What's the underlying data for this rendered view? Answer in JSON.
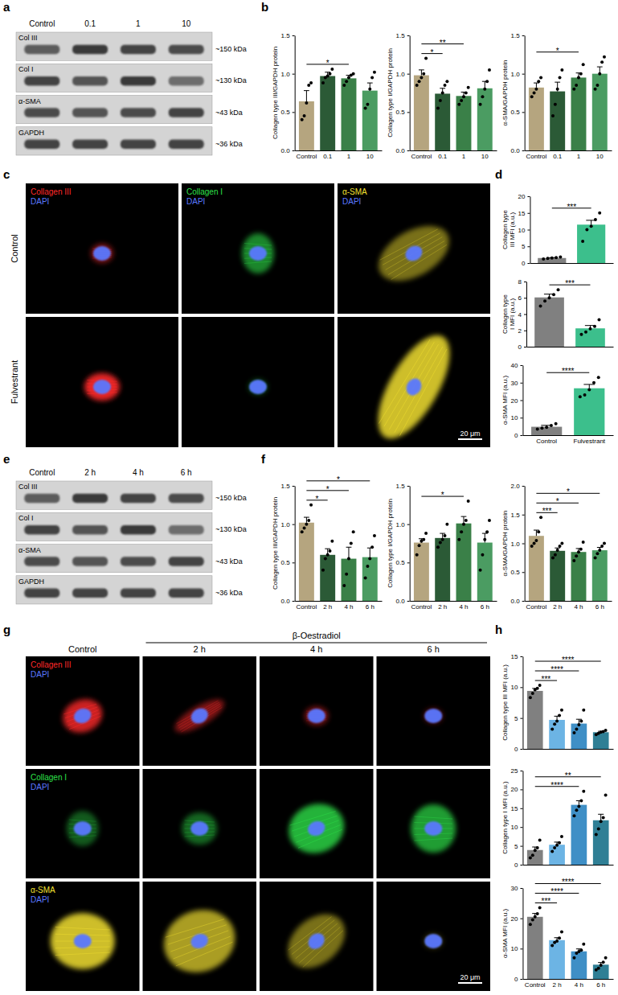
{
  "panel_letters": [
    "a",
    "b",
    "c",
    "d",
    "e",
    "f",
    "g",
    "h"
  ],
  "blots": [
    {
      "lanes": [
        "Control",
        "0.1",
        "1",
        "10"
      ],
      "rows": [
        {
          "name": "Col III",
          "size": "~150 kDa"
        },
        {
          "name": "Col I",
          "size": "~130 kDa"
        },
        {
          "name": "α-SMA",
          "size": "~43 kDa"
        },
        {
          "name": "GAPDH",
          "size": "~36 kDa"
        }
      ]
    },
    {
      "lanes": [
        "Control",
        "2 h",
        "4 h",
        "6 h"
      ],
      "rows": [
        {
          "name": "Col III",
          "size": "~150 kDa"
        },
        {
          "name": "Col I",
          "size": "~130 kDa"
        },
        {
          "name": "α-SMA",
          "size": "~43 kDa"
        },
        {
          "name": "GAPDH",
          "size": "~36 kDa"
        }
      ]
    }
  ],
  "micrographs": [
    {
      "rows": [
        "Control",
        "Fulvestrant"
      ],
      "channels": [
        {
          "name": "Collagen III",
          "color": "#ff2a2a"
        },
        {
          "name": "Collagen I",
          "color": "#2ee04a"
        },
        {
          "name": "α-SMA",
          "color": "#f2e030"
        }
      ],
      "counterstain": {
        "name": "DAPI",
        "color": "#5a78ff"
      },
      "scale_bar": "20 μm"
    },
    {
      "columns": [
        "Control",
        "2 h",
        "4 h",
        "6 h"
      ],
      "group": "β-Oestradiol",
      "channels": [
        {
          "name": "Collagen III",
          "color": "#ff2a2a"
        },
        {
          "name": "Collagen I",
          "color": "#2ee04a"
        },
        {
          "name": "α-SMA",
          "color": "#f2e030"
        }
      ],
      "counterstain": {
        "name": "DAPI",
        "color": "#5a78ff"
      },
      "scale_bar": "20 μm"
    }
  ],
  "chart_data": [
    {
      "type": "bar",
      "y_label": "Collagen type III/GAPDH protein",
      "categories": [
        "Control",
        "0.1",
        "1",
        "10"
      ],
      "values": [
        0.64,
        0.97,
        0.94,
        0.78
      ],
      "errors": [
        0.14,
        0.05,
        0.04,
        0.1
      ],
      "points": [
        [
          0.4,
          0.45,
          0.62,
          0.85,
          0.88
        ],
        [
          0.88,
          0.95,
          0.97,
          1.0,
          1.06
        ],
        [
          0.85,
          0.9,
          0.95,
          0.98,
          1.0
        ],
        [
          0.55,
          0.6,
          0.8,
          0.95,
          1.02
        ]
      ],
      "colors": [
        "#b5a57f",
        "#2b5a36",
        "#3a8048",
        "#4b9c62"
      ],
      "ylim": [
        0,
        1.5
      ],
      "yticks": [
        {
          "value": 0,
          "label": "0.0"
        },
        {
          "value": 0.5,
          "label": "0.5"
        },
        {
          "value": 1,
          "label": "1.0"
        },
        {
          "value": 1.5,
          "label": "1.5"
        }
      ],
      "annotations": [
        {
          "text": "*",
          "between": [
            "Control",
            "1"
          ]
        }
      ]
    },
    {
      "type": "bar",
      "y_label": "Collagen type I/GAPDH protein",
      "categories": [
        "Control",
        "0.1",
        "1",
        "10"
      ],
      "values": [
        0.98,
        0.74,
        0.71,
        0.81
      ],
      "errors": [
        0.07,
        0.07,
        0.05,
        0.09
      ],
      "points": [
        [
          0.85,
          0.9,
          0.95,
          1.0,
          1.2
        ],
        [
          0.55,
          0.65,
          0.75,
          0.85,
          0.9
        ],
        [
          0.6,
          0.65,
          0.7,
          0.75,
          0.82
        ],
        [
          0.6,
          0.7,
          0.8,
          0.9,
          1.05
        ]
      ],
      "colors": [
        "#b5a57f",
        "#2b5a36",
        "#3a8048",
        "#4b9c62"
      ],
      "ylim": [
        0,
        1.5
      ],
      "yticks": [
        {
          "value": 0,
          "label": "0.0"
        },
        {
          "value": 0.5,
          "label": "0.5"
        },
        {
          "value": 1,
          "label": "1.0"
        },
        {
          "value": 1.5,
          "label": "1.5"
        }
      ],
      "annotations": [
        {
          "text": "*",
          "between": [
            "Control",
            "0.1"
          ]
        },
        {
          "text": "**",
          "between": [
            "Control",
            "1"
          ]
        }
      ]
    },
    {
      "type": "bar",
      "y_label": "α-SMA/GAPDH protein",
      "categories": [
        "Control",
        "0.1",
        "1",
        "10"
      ],
      "values": [
        0.82,
        0.77,
        0.95,
        1.0
      ],
      "errors": [
        0.06,
        0.12,
        0.06,
        0.09
      ],
      "points": [
        [
          0.7,
          0.75,
          0.8,
          0.9,
          0.95
        ],
        [
          0.45,
          0.6,
          0.8,
          0.95,
          1.05
        ],
        [
          0.8,
          0.85,
          0.95,
          1.0,
          1.12
        ],
        [
          0.8,
          0.85,
          1.0,
          1.15,
          1.22
        ]
      ],
      "colors": [
        "#b5a57f",
        "#2b5a36",
        "#3a8048",
        "#4b9c62"
      ],
      "ylim": [
        0,
        1.5
      ],
      "yticks": [
        {
          "value": 0,
          "label": "0.0"
        },
        {
          "value": 0.5,
          "label": "0.5"
        },
        {
          "value": 1,
          "label": "1.0"
        },
        {
          "value": 1.5,
          "label": "1.5"
        }
      ],
      "annotations": [
        {
          "text": "*",
          "between": [
            "Control",
            "1"
          ]
        }
      ]
    },
    {
      "type": "bar",
      "y_label": "Collagen type III MFI (a.u.)",
      "categories": [
        "Control",
        "Fulvestrant"
      ],
      "values": [
        1.5,
        11.5
      ],
      "errors": [
        0.1,
        1.3
      ],
      "points": [
        [
          1.2,
          1.4,
          1.5,
          1.6,
          1.8
        ],
        [
          6.5,
          10,
          11,
          13,
          15
        ]
      ],
      "colors": [
        "#808080",
        "#3cbf8c"
      ],
      "ylim": [
        0,
        20
      ],
      "yticks": [
        0,
        5,
        10,
        15,
        20
      ],
      "tick_labels": "y",
      "annotations": [
        {
          "text": "***",
          "between": [
            "Control",
            "Fulvestrant"
          ]
        }
      ]
    },
    {
      "type": "bar",
      "y_label": "Collagen type I MFI (a.u.)",
      "categories": [
        "Control",
        "Fulvestrant"
      ],
      "values": [
        6.05,
        2.25
      ],
      "errors": [
        0.4,
        0.35
      ],
      "points": [
        [
          5,
          5.6,
          6,
          6.4,
          7
        ],
        [
          1.5,
          1.8,
          2.2,
          2.5,
          3.3
        ]
      ],
      "colors": [
        "#808080",
        "#3cbf8c"
      ],
      "ylim": [
        0,
        8
      ],
      "yticks": [
        0,
        2,
        4,
        6,
        8
      ],
      "tick_labels": "y",
      "annotations": [
        {
          "text": "***",
          "between": [
            "Control",
            "Fulvestrant"
          ]
        }
      ]
    },
    {
      "type": "bar",
      "y_label": "α-SMA MFI (a.u.)",
      "categories": [
        "Control",
        "Fulvestrant"
      ],
      "values": [
        4.8,
        26.8
      ],
      "errors": [
        0.8,
        2.2
      ],
      "points": [
        [
          3.5,
          4,
          4.5,
          5.5,
          6.5
        ],
        [
          22,
          23,
          26,
          30,
          33
        ]
      ],
      "colors": [
        "#808080",
        "#3cbf8c"
      ],
      "ylim": [
        0,
        40
      ],
      "yticks": [
        0,
        10,
        20,
        30,
        40
      ],
      "annotations": [
        {
          "text": "****",
          "between": [
            "Control",
            "Fulvestrant"
          ]
        }
      ]
    },
    {
      "type": "bar",
      "y_label": "Collagen type III/GAPDH protein",
      "categories": [
        "Control",
        "2 h",
        "4 h",
        "6 h"
      ],
      "values": [
        1.02,
        0.6,
        0.55,
        0.57
      ],
      "errors": [
        0.07,
        0.08,
        0.15,
        0.12
      ],
      "points": [
        [
          0.9,
          0.95,
          1.0,
          1.05,
          1.25
        ],
        [
          0.4,
          0.55,
          0.6,
          0.65,
          0.78
        ],
        [
          0.2,
          0.35,
          0.55,
          0.75,
          0.9
        ],
        [
          0.3,
          0.45,
          0.55,
          0.7,
          0.85
        ]
      ],
      "colors": [
        "#b5a57f",
        "#2b5a36",
        "#3a8048",
        "#4b9c62"
      ],
      "ylim": [
        0,
        1.5
      ],
      "yticks": [
        {
          "value": 0,
          "label": "0.0"
        },
        {
          "value": 0.5,
          "label": "0.5"
        },
        {
          "value": 1,
          "label": "1.0"
        },
        {
          "value": 1.5,
          "label": "1.5"
        }
      ],
      "annotations": [
        {
          "text": "*",
          "between": [
            "Control",
            "2 h"
          ]
        },
        {
          "text": "*",
          "between": [
            "Control",
            "4 h"
          ]
        },
        {
          "text": "*",
          "between": [
            "Control",
            "6 h"
          ]
        }
      ]
    },
    {
      "type": "bar",
      "y_label": "Collagen type I/GAPDH protein",
      "categories": [
        "Control",
        "2 h",
        "4 h",
        "6 h"
      ],
      "values": [
        0.76,
        0.82,
        1.01,
        0.76
      ],
      "errors": [
        0.05,
        0.06,
        0.09,
        0.12
      ],
      "points": [
        [
          0.6,
          0.72,
          0.78,
          0.8,
          0.88
        ],
        [
          0.7,
          0.76,
          0.8,
          0.85,
          1.0
        ],
        [
          0.8,
          0.9,
          1.0,
          1.05,
          1.3
        ],
        [
          0.4,
          0.6,
          0.8,
          0.9,
          1.05
        ]
      ],
      "colors": [
        "#b5a57f",
        "#2b5a36",
        "#3a8048",
        "#4b9c62"
      ],
      "ylim": [
        0,
        1.5
      ],
      "yticks": [
        {
          "value": 0,
          "label": "0.0"
        },
        {
          "value": 0.5,
          "label": "0.5"
        },
        {
          "value": 1,
          "label": "1.0"
        },
        {
          "value": 1.5,
          "label": "1.5"
        }
      ],
      "annotations": [
        {
          "text": "*",
          "between": [
            "Control",
            "4 h"
          ]
        }
      ]
    },
    {
      "type": "bar",
      "y_label": "α-SMA/GAPDH protein",
      "categories": [
        "Control",
        "2 h",
        "4 h",
        "6 h"
      ],
      "values": [
        1.13,
        0.87,
        0.85,
        0.88
      ],
      "errors": [
        0.1,
        0.05,
        0.06,
        0.05
      ],
      "points": [
        [
          0.95,
          1.0,
          1.05,
          1.2,
          1.45
        ],
        [
          0.75,
          0.8,
          0.88,
          0.95,
          1.0
        ],
        [
          0.7,
          0.78,
          0.85,
          0.9,
          1.02
        ],
        [
          0.75,
          0.82,
          0.88,
          0.95,
          1.0
        ]
      ],
      "colors": [
        "#b5a57f",
        "#2b5a36",
        "#3a8048",
        "#4b9c62"
      ],
      "ylim": [
        0,
        2
      ],
      "yticks": [
        {
          "value": 0,
          "label": "0.0"
        },
        {
          "value": 0.5,
          "label": "0.5"
        },
        {
          "value": 1,
          "label": "1.0"
        },
        {
          "value": 1.5,
          "label": "1.5"
        },
        {
          "value": 2,
          "label": "2.0"
        }
      ],
      "annotations": [
        {
          "text": "***",
          "between": [
            "Control",
            "2 h"
          ]
        },
        {
          "text": "*",
          "between": [
            "Control",
            "4 h"
          ]
        },
        {
          "text": "*",
          "between": [
            "Control",
            "6 h"
          ]
        }
      ]
    },
    {
      "type": "bar",
      "y_label": "Collagen type III MFI (a.u.)",
      "categories": [
        "Control",
        "2 h",
        "4 h",
        "6 h"
      ],
      "values": [
        9.4,
        4.7,
        4.1,
        2.7
      ],
      "errors": [
        0.4,
        0.6,
        0.7,
        0.15
      ],
      "points": [
        [
          8.3,
          9,
          9.6,
          9.8,
          10.3
        ],
        [
          3.2,
          4,
          4.5,
          5.4,
          6.3
        ],
        [
          2.6,
          3.2,
          3.9,
          4.5,
          6.3
        ],
        [
          2.3,
          2.5,
          2.7,
          2.8,
          3.0
        ]
      ],
      "colors": [
        "#808080",
        "#6cb4e4",
        "#3f8fc6",
        "#2f7f95"
      ],
      "ylim": [
        0,
        15
      ],
      "yticks": [
        0,
        5,
        10,
        15
      ],
      "tick_labels": "y",
      "annotations": [
        {
          "text": "***",
          "between": [
            "Control",
            "2 h"
          ]
        },
        {
          "text": "****",
          "between": [
            "Control",
            "4 h"
          ]
        },
        {
          "text": "****",
          "between": [
            "Control",
            "6 h"
          ]
        }
      ]
    },
    {
      "type": "bar",
      "y_label": "Collagen type I MFI (a.u.)",
      "categories": [
        "Control",
        "2 h",
        "4 h",
        "6 h"
      ],
      "values": [
        3.9,
        5.3,
        15.9,
        11.8
      ],
      "errors": [
        0.8,
        0.7,
        1.1,
        1.6
      ],
      "points": [
        [
          1.8,
          2.5,
          3.8,
          4.5,
          6.5
        ],
        [
          3.5,
          4.5,
          5.2,
          5.8,
          7.5
        ],
        [
          13,
          14.5,
          15.5,
          17,
          19.5
        ],
        [
          8,
          9.5,
          11.5,
          12.5,
          18.5
        ]
      ],
      "colors": [
        "#808080",
        "#6cb4e4",
        "#3f8fc6",
        "#2f7f95"
      ],
      "ylim": [
        0,
        25
      ],
      "yticks": [
        0,
        5,
        10,
        15,
        20,
        25
      ],
      "tick_labels": "y",
      "annotations": [
        {
          "text": "****",
          "between": [
            "Control",
            "4 h"
          ]
        },
        {
          "text": "**",
          "between": [
            "Control",
            "6 h"
          ]
        }
      ]
    },
    {
      "type": "bar",
      "y_label": "α-SMA MFI (a.u.)",
      "categories": [
        "Control",
        "2 h",
        "4 h",
        "6 h"
      ],
      "values": [
        20.5,
        12.8,
        9.1,
        4.7
      ],
      "errors": [
        1.1,
        0.8,
        0.8,
        0.7
      ],
      "points": [
        [
          18,
          19.5,
          20.5,
          21.5,
          23.5
        ],
        [
          11,
          12,
          12.5,
          13.5,
          15.5
        ],
        [
          7,
          8.5,
          9,
          9.5,
          11.5
        ],
        [
          3,
          3.5,
          4.5,
          5.5,
          7
        ]
      ],
      "colors": [
        "#808080",
        "#6cb4e4",
        "#3f8fc6",
        "#2f7f95"
      ],
      "ylim": [
        0,
        30
      ],
      "yticks": [
        0,
        10,
        20,
        30
      ],
      "annotations": [
        {
          "text": "***",
          "between": [
            "Control",
            "2 h"
          ]
        },
        {
          "text": "****",
          "between": [
            "Control",
            "4 h"
          ]
        },
        {
          "text": "****",
          "between": [
            "Control",
            "6 h"
          ]
        }
      ]
    }
  ]
}
